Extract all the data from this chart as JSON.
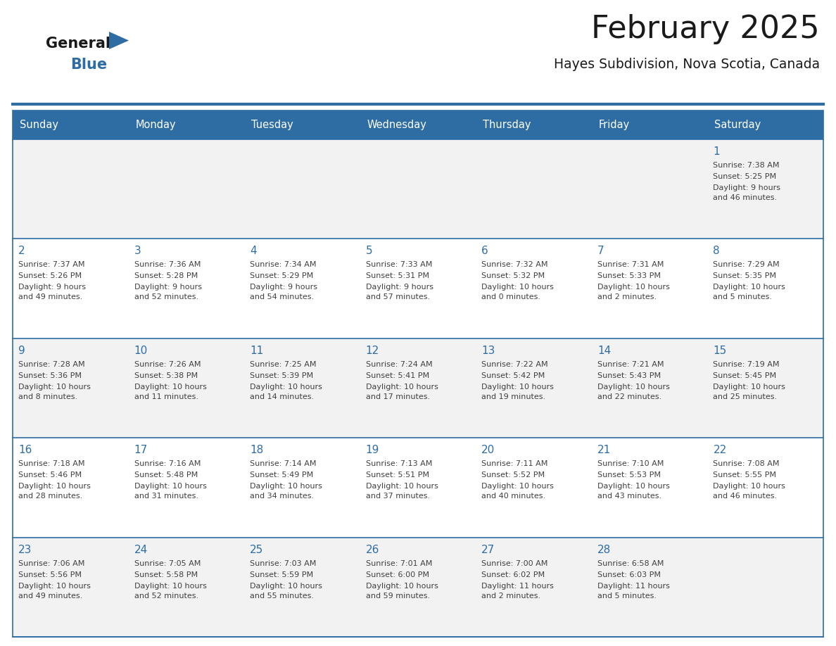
{
  "title": "February 2025",
  "subtitle": "Hayes Subdivision, Nova Scotia, Canada",
  "header_color": "#2E6DA4",
  "header_text_color": "#FFFFFF",
  "day_number_color": "#2E6DA4",
  "info_text_color": "#404040",
  "border_color": "#2E6DA4",
  "separator_color": "#2E6DA4",
  "days_of_week": [
    "Sunday",
    "Monday",
    "Tuesday",
    "Wednesday",
    "Thursday",
    "Friday",
    "Saturday"
  ],
  "row_bg": [
    "#F2F2F2",
    "#FFFFFF",
    "#F2F2F2",
    "#FFFFFF",
    "#F2F2F2"
  ],
  "calendar_data": [
    [
      null,
      null,
      null,
      null,
      null,
      null,
      {
        "day": "1",
        "sunrise": "7:38 AM",
        "sunset": "5:25 PM",
        "daylight1": "9 hours",
        "daylight2": "and 46 minutes."
      }
    ],
    [
      {
        "day": "2",
        "sunrise": "7:37 AM",
        "sunset": "5:26 PM",
        "daylight1": "9 hours",
        "daylight2": "and 49 minutes."
      },
      {
        "day": "3",
        "sunrise": "7:36 AM",
        "sunset": "5:28 PM",
        "daylight1": "9 hours",
        "daylight2": "and 52 minutes."
      },
      {
        "day": "4",
        "sunrise": "7:34 AM",
        "sunset": "5:29 PM",
        "daylight1": "9 hours",
        "daylight2": "and 54 minutes."
      },
      {
        "day": "5",
        "sunrise": "7:33 AM",
        "sunset": "5:31 PM",
        "daylight1": "9 hours",
        "daylight2": "and 57 minutes."
      },
      {
        "day": "6",
        "sunrise": "7:32 AM",
        "sunset": "5:32 PM",
        "daylight1": "10 hours",
        "daylight2": "and 0 minutes."
      },
      {
        "day": "7",
        "sunrise": "7:31 AM",
        "sunset": "5:33 PM",
        "daylight1": "10 hours",
        "daylight2": "and 2 minutes."
      },
      {
        "day": "8",
        "sunrise": "7:29 AM",
        "sunset": "5:35 PM",
        "daylight1": "10 hours",
        "daylight2": "and 5 minutes."
      }
    ],
    [
      {
        "day": "9",
        "sunrise": "7:28 AM",
        "sunset": "5:36 PM",
        "daylight1": "10 hours",
        "daylight2": "and 8 minutes."
      },
      {
        "day": "10",
        "sunrise": "7:26 AM",
        "sunset": "5:38 PM",
        "daylight1": "10 hours",
        "daylight2": "and 11 minutes."
      },
      {
        "day": "11",
        "sunrise": "7:25 AM",
        "sunset": "5:39 PM",
        "daylight1": "10 hours",
        "daylight2": "and 14 minutes."
      },
      {
        "day": "12",
        "sunrise": "7:24 AM",
        "sunset": "5:41 PM",
        "daylight1": "10 hours",
        "daylight2": "and 17 minutes."
      },
      {
        "day": "13",
        "sunrise": "7:22 AM",
        "sunset": "5:42 PM",
        "daylight1": "10 hours",
        "daylight2": "and 19 minutes."
      },
      {
        "day": "14",
        "sunrise": "7:21 AM",
        "sunset": "5:43 PM",
        "daylight1": "10 hours",
        "daylight2": "and 22 minutes."
      },
      {
        "day": "15",
        "sunrise": "7:19 AM",
        "sunset": "5:45 PM",
        "daylight1": "10 hours",
        "daylight2": "and 25 minutes."
      }
    ],
    [
      {
        "day": "16",
        "sunrise": "7:18 AM",
        "sunset": "5:46 PM",
        "daylight1": "10 hours",
        "daylight2": "and 28 minutes."
      },
      {
        "day": "17",
        "sunrise": "7:16 AM",
        "sunset": "5:48 PM",
        "daylight1": "10 hours",
        "daylight2": "and 31 minutes."
      },
      {
        "day": "18",
        "sunrise": "7:14 AM",
        "sunset": "5:49 PM",
        "daylight1": "10 hours",
        "daylight2": "and 34 minutes."
      },
      {
        "day": "19",
        "sunrise": "7:13 AM",
        "sunset": "5:51 PM",
        "daylight1": "10 hours",
        "daylight2": "and 37 minutes."
      },
      {
        "day": "20",
        "sunrise": "7:11 AM",
        "sunset": "5:52 PM",
        "daylight1": "10 hours",
        "daylight2": "and 40 minutes."
      },
      {
        "day": "21",
        "sunrise": "7:10 AM",
        "sunset": "5:53 PM",
        "daylight1": "10 hours",
        "daylight2": "and 43 minutes."
      },
      {
        "day": "22",
        "sunrise": "7:08 AM",
        "sunset": "5:55 PM",
        "daylight1": "10 hours",
        "daylight2": "and 46 minutes."
      }
    ],
    [
      {
        "day": "23",
        "sunrise": "7:06 AM",
        "sunset": "5:56 PM",
        "daylight1": "10 hours",
        "daylight2": "and 49 minutes."
      },
      {
        "day": "24",
        "sunrise": "7:05 AM",
        "sunset": "5:58 PM",
        "daylight1": "10 hours",
        "daylight2": "and 52 minutes."
      },
      {
        "day": "25",
        "sunrise": "7:03 AM",
        "sunset": "5:59 PM",
        "daylight1": "10 hours",
        "daylight2": "and 55 minutes."
      },
      {
        "day": "26",
        "sunrise": "7:01 AM",
        "sunset": "6:00 PM",
        "daylight1": "10 hours",
        "daylight2": "and 59 minutes."
      },
      {
        "day": "27",
        "sunrise": "7:00 AM",
        "sunset": "6:02 PM",
        "daylight1": "11 hours",
        "daylight2": "and 2 minutes."
      },
      {
        "day": "28",
        "sunrise": "6:58 AM",
        "sunset": "6:03 PM",
        "daylight1": "11 hours",
        "daylight2": "and 5 minutes."
      },
      null
    ]
  ]
}
